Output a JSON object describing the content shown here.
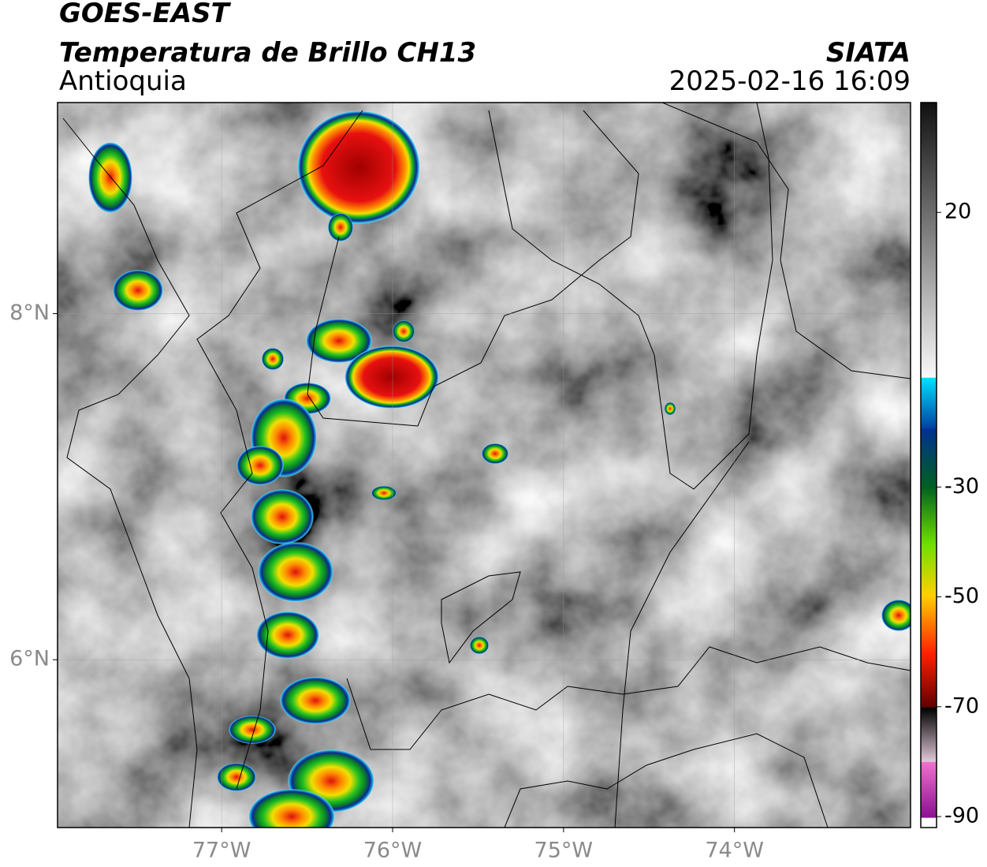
{
  "header": {
    "satellite": "GOES-EAST",
    "title": "Temperatura de Brillo CH13",
    "region": "Antioquia",
    "source": "SIATA",
    "datetime": "2025-02-16 16:09"
  },
  "map": {
    "xlim": [
      -77.96,
      -72.97
    ],
    "ylim": [
      5.03,
      9.22
    ],
    "xticks": [
      {
        "value": -77,
        "label": "77°W"
      },
      {
        "value": -76,
        "label": "76°W"
      },
      {
        "value": -75,
        "label": "75°W"
      },
      {
        "value": -74,
        "label": "74°W"
      }
    ],
    "yticks": [
      {
        "value": 8,
        "label": "8°N"
      },
      {
        "value": 6,
        "label": "6°N"
      }
    ],
    "grid": true
  },
  "colorbar": {
    "clim": [
      -92,
      40
    ],
    "ticks": [
      20,
      -30,
      -50,
      -70,
      -90
    ]
  }
}
